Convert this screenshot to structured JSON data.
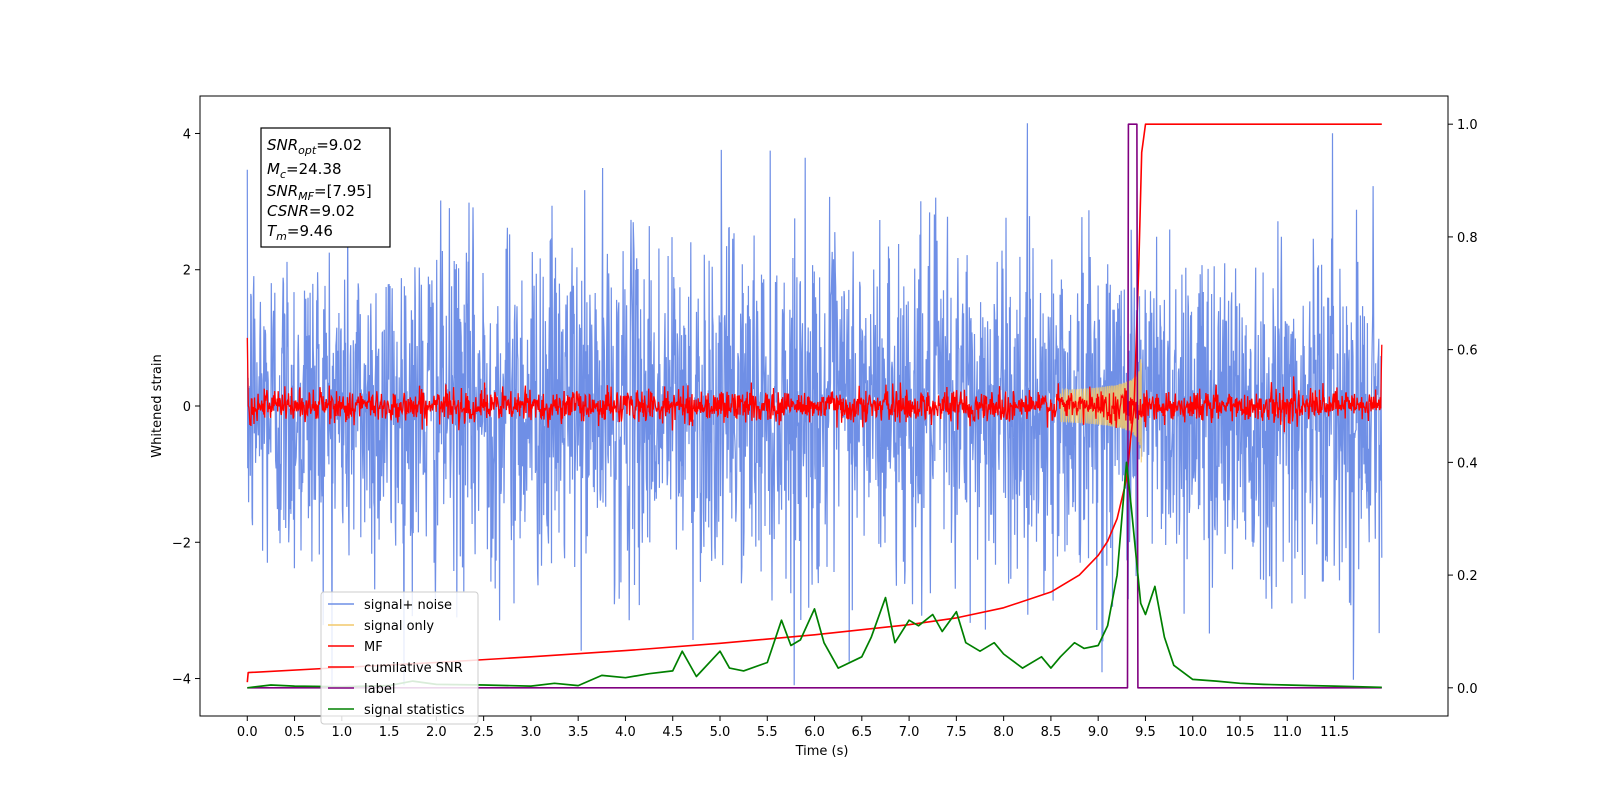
{
  "chart_data": {
    "type": "line",
    "title": "",
    "xlabel": "Time (s)",
    "ylabel": "Whitened strain",
    "y2label": "",
    "xlim": [
      -0.5,
      12.7
    ],
    "ylim": [
      -4.55,
      4.55
    ],
    "y2lim": [
      -0.05,
      1.05
    ],
    "x_ticks": [
      0.0,
      0.5,
      1.0,
      1.5,
      2.0,
      2.5,
      3.0,
      3.5,
      4.0,
      4.5,
      5.0,
      5.5,
      6.0,
      6.5,
      7.0,
      7.5,
      8.0,
      8.5,
      9.0,
      9.5,
      10.0,
      10.5,
      11.0,
      11.5
    ],
    "x_tick_labels": [
      "0.0",
      "0.5",
      "1.0",
      "1.5",
      "2.0",
      "2.5",
      "3.0",
      "3.5",
      "4.0",
      "4.5",
      "5.0",
      "5.5",
      "6.0",
      "6.5",
      "7.0",
      "7.5",
      "8.0",
      "8.5",
      "9.0",
      "9.5",
      "10.0",
      "10.5",
      "11.0",
      "11.5"
    ],
    "y_ticks": [
      -4,
      -2,
      0,
      2,
      4
    ],
    "y_tick_labels": [
      "−4",
      "−2",
      "0",
      "2",
      "4"
    ],
    "y2_ticks": [
      0.0,
      0.2,
      0.4,
      0.6,
      0.8,
      1.0
    ],
    "y2_tick_labels": [
      "0.0",
      "0.2",
      "0.4",
      "0.6",
      "0.8",
      "1.0"
    ],
    "grid": false,
    "legend_position": "lower-left",
    "annotation": {
      "lines": [
        {
          "sym": "SNR",
          "sub": "opt",
          "val": "=9.02"
        },
        {
          "sym": "M",
          "sub": "c",
          "val": "=24.38"
        },
        {
          "sym": "SNR",
          "sub": "MF",
          "val": "=[7.95]"
        },
        {
          "sym": "CSNR",
          "sub": "",
          "val": "=9.02"
        },
        {
          "sym": "T",
          "sub": "m",
          "val": "=9.46"
        }
      ]
    },
    "series": [
      {
        "name": "signal+ noise",
        "color": "#6f8fe6",
        "axis": "left",
        "kind": "noise",
        "x_range": [
          0.0,
          12.0
        ],
        "std": 1.0
      },
      {
        "name": "signal only",
        "color": "#f2c96b",
        "axis": "left",
        "kind": "chirp",
        "x_range": [
          8.6,
          9.46
        ],
        "peak_amplitude": 0.9
      },
      {
        "name": "MF",
        "color": "#ff0000",
        "axis": "left",
        "kind": "noise",
        "x_range": [
          0.0,
          12.0
        ],
        "std": 0.12
      },
      {
        "name": "cumilative SNR",
        "color": "#ff0000",
        "axis": "right",
        "x": [
          0.0,
          0.01,
          1.0,
          2.0,
          3.0,
          4.0,
          5.0,
          6.0,
          7.0,
          7.5,
          8.0,
          8.5,
          8.8,
          9.0,
          9.1,
          9.2,
          9.3,
          9.38,
          9.43,
          9.46,
          9.5,
          10.0,
          11.0,
          12.0
        ],
        "y": [
          0.01,
          0.027,
          0.036,
          0.045,
          0.055,
          0.066,
          0.079,
          0.094,
          0.112,
          0.124,
          0.142,
          0.17,
          0.2,
          0.235,
          0.26,
          0.3,
          0.37,
          0.5,
          0.75,
          0.95,
          1.0,
          1.0,
          1.0,
          1.0
        ]
      },
      {
        "name": "label",
        "color": "#800080",
        "axis": "right",
        "x": [
          0.0,
          9.31,
          9.32,
          9.41,
          9.42,
          12.0
        ],
        "y": [
          0.0,
          0.0,
          1.0,
          1.0,
          0.0,
          0.0
        ]
      },
      {
        "name": "signal statistics",
        "color": "#008000",
        "axis": "right",
        "x": [
          0.0,
          0.25,
          0.5,
          1.0,
          1.5,
          1.75,
          2.0,
          2.5,
          3.0,
          3.25,
          3.5,
          3.75,
          4.0,
          4.25,
          4.5,
          4.6,
          4.75,
          5.0,
          5.1,
          5.25,
          5.5,
          5.65,
          5.75,
          5.85,
          6.0,
          6.1,
          6.25,
          6.5,
          6.6,
          6.75,
          6.85,
          7.0,
          7.1,
          7.25,
          7.35,
          7.5,
          7.6,
          7.75,
          7.9,
          8.0,
          8.2,
          8.4,
          8.5,
          8.6,
          8.75,
          8.85,
          9.0,
          9.1,
          9.2,
          9.3,
          9.35,
          9.45,
          9.5,
          9.6,
          9.7,
          9.8,
          10.0,
          10.25,
          10.5,
          10.75,
          11.0,
          11.25,
          11.5,
          12.0
        ],
        "y": [
          0.0,
          0.005,
          0.003,
          0.002,
          0.004,
          0.012,
          0.006,
          0.005,
          0.003,
          0.008,
          0.004,
          0.022,
          0.018,
          0.025,
          0.03,
          0.065,
          0.02,
          0.065,
          0.035,
          0.03,
          0.045,
          0.12,
          0.075,
          0.085,
          0.14,
          0.08,
          0.035,
          0.055,
          0.09,
          0.16,
          0.08,
          0.12,
          0.11,
          0.13,
          0.1,
          0.135,
          0.08,
          0.065,
          0.08,
          0.06,
          0.035,
          0.055,
          0.035,
          0.055,
          0.08,
          0.07,
          0.075,
          0.11,
          0.2,
          0.4,
          0.32,
          0.15,
          0.13,
          0.18,
          0.09,
          0.04,
          0.015,
          0.012,
          0.008,
          0.006,
          0.005,
          0.004,
          0.003,
          0.001
        ]
      }
    ]
  }
}
